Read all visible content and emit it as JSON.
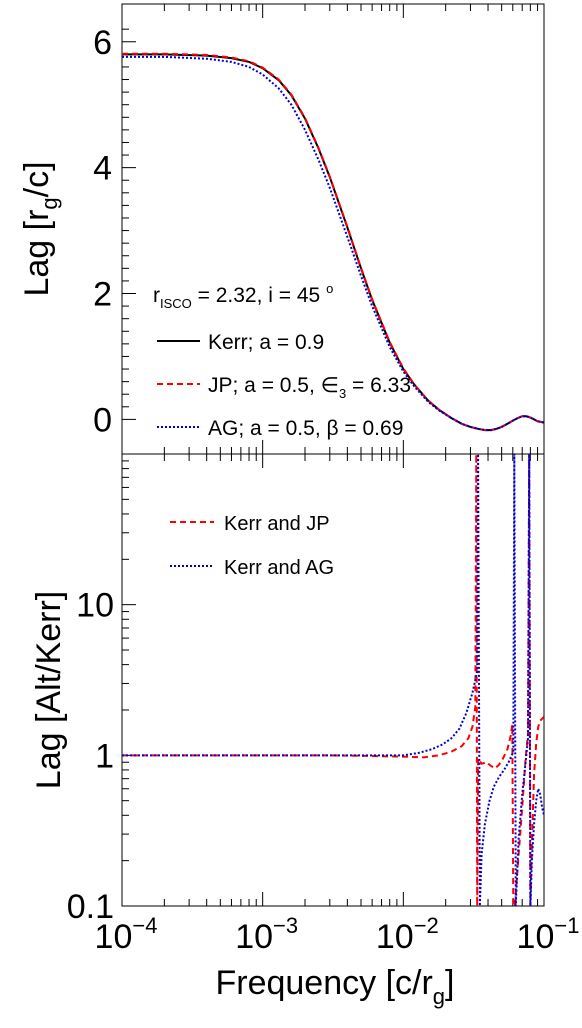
{
  "chart_data": [
    {
      "type": "line",
      "title": "",
      "ylabel": {
        "pre": "Lag [r",
        "sub": "g",
        "post": "/c]"
      },
      "xscale": "log",
      "xlim": [
        0.0001,
        0.1
      ],
      "ylim": [
        -0.55,
        6.6
      ],
      "yticks": [
        {
          "value": 0,
          "label": "0"
        },
        {
          "value": 2,
          "label": "2"
        },
        {
          "value": 4,
          "label": "4"
        },
        {
          "value": 6,
          "label": "6"
        }
      ],
      "grid": false,
      "legend_position": "bottom-left",
      "annotation": {
        "r": "r",
        "sub": "ISCO",
        "eq": " = 2.32, i = 45 ",
        "sup": "o"
      },
      "series": [
        {
          "name": "Kerr; a = 0.9",
          "legend": {
            "pre": "Kerr; a = 0.9",
            "sub": "",
            "post": ""
          },
          "color": "#000000",
          "dash": "solid",
          "x": [
            0.0001,
            0.0002,
            0.0004,
            0.0006,
            0.0008,
            0.001,
            0.0013,
            0.0016,
            0.002,
            0.0025,
            0.003,
            0.004,
            0.005,
            0.006,
            0.008,
            0.01,
            0.012,
            0.015,
            0.018,
            0.022,
            0.026,
            0.03,
            0.034,
            0.038,
            0.042,
            0.046,
            0.05,
            0.055,
            0.06,
            0.065,
            0.07,
            0.075,
            0.08,
            0.085,
            0.09,
            0.1
          ],
          "y": [
            5.8,
            5.8,
            5.78,
            5.74,
            5.68,
            5.58,
            5.39,
            5.15,
            4.78,
            4.3,
            3.85,
            3.05,
            2.4,
            1.9,
            1.22,
            0.8,
            0.55,
            0.3,
            0.15,
            0.02,
            -0.07,
            -0.12,
            -0.15,
            -0.17,
            -0.17,
            -0.15,
            -0.12,
            -0.07,
            -0.02,
            0.02,
            0.05,
            0.05,
            0.03,
            0.0,
            -0.03,
            -0.05
          ]
        },
        {
          "name": "JP; a = 0.5, ∈3 = 6.33",
          "legend": {
            "pre": "JP; a = 0.5, ∈",
            "sub": "3",
            "post": " = 6.33"
          },
          "color": "#ff0000",
          "dash": "dashed",
          "x": [
            0.0001,
            0.0002,
            0.0004,
            0.0006,
            0.0008,
            0.001,
            0.0013,
            0.0016,
            0.002,
            0.0025,
            0.003,
            0.004,
            0.005,
            0.006,
            0.008,
            0.01,
            0.012,
            0.015,
            0.018,
            0.022,
            0.026,
            0.03,
            0.034,
            0.038,
            0.042,
            0.046,
            0.05,
            0.055,
            0.06,
            0.065,
            0.07,
            0.075,
            0.08,
            0.085,
            0.09,
            0.1
          ],
          "y": [
            5.81,
            5.81,
            5.79,
            5.75,
            5.69,
            5.59,
            5.4,
            5.16,
            4.79,
            4.31,
            3.86,
            3.06,
            2.41,
            1.91,
            1.23,
            0.81,
            0.55,
            0.3,
            0.15,
            0.02,
            -0.07,
            -0.12,
            -0.15,
            -0.17,
            -0.17,
            -0.15,
            -0.12,
            -0.07,
            -0.02,
            0.02,
            0.05,
            0.05,
            0.03,
            0.0,
            -0.03,
            -0.05
          ]
        },
        {
          "name": "AG; a = 0.5, β = 0.69",
          "legend": {
            "pre": "AG; a = 0.5, β = 0.69",
            "sub": "",
            "post": ""
          },
          "color": "#0000cc",
          "dash": "dotted",
          "x": [
            0.0001,
            0.0002,
            0.0004,
            0.0006,
            0.0008,
            0.001,
            0.0013,
            0.0016,
            0.002,
            0.0025,
            0.003,
            0.004,
            0.005,
            0.006,
            0.008,
            0.01,
            0.012,
            0.015,
            0.018,
            0.022,
            0.026,
            0.03,
            0.034,
            0.038,
            0.042,
            0.046,
            0.05,
            0.055,
            0.06,
            0.065,
            0.07,
            0.075,
            0.08,
            0.085,
            0.09,
            0.1
          ],
          "y": [
            5.76,
            5.76,
            5.73,
            5.68,
            5.6,
            5.48,
            5.26,
            5.0,
            4.6,
            4.12,
            3.68,
            2.9,
            2.28,
            1.8,
            1.15,
            0.76,
            0.52,
            0.28,
            0.14,
            0.02,
            -0.07,
            -0.12,
            -0.15,
            -0.17,
            -0.17,
            -0.15,
            -0.12,
            -0.07,
            -0.02,
            0.02,
            0.05,
            0.05,
            0.03,
            0.0,
            -0.03,
            -0.05
          ]
        }
      ]
    },
    {
      "type": "line",
      "title": "",
      "ylabel": "Lag [Alt/Kerr]",
      "xlabel": {
        "pre": "Frequency [c/r",
        "sub": "g",
        "post": "]"
      },
      "xscale": "log",
      "yscale": "log",
      "xlim": [
        0.0001,
        0.1
      ],
      "ylim": [
        0.1,
        100
      ],
      "yticks": [
        {
          "value": 0.1,
          "label": "0.1"
        },
        {
          "value": 1,
          "label": "1"
        },
        {
          "value": 10,
          "label": "10"
        }
      ],
      "xticks": [
        {
          "value": 0.0001,
          "base": "10",
          "exp": "−4"
        },
        {
          "value": 0.001,
          "base": "10",
          "exp": "−3"
        },
        {
          "value": 0.01,
          "base": "10",
          "exp": "−2"
        },
        {
          "value": 0.1,
          "base": "10",
          "exp": "−1"
        }
      ],
      "grid": false,
      "legend_position": "top-left",
      "series": [
        {
          "name": "Kerr and JP",
          "color": "#ff0000",
          "dash": "dashed",
          "x": [
            0.0001,
            0.0005,
            0.001,
            0.003,
            0.006,
            0.01,
            0.014,
            0.018,
            0.022,
            0.026,
            0.029,
            0.031,
            0.0325,
            0.033,
            0.0335,
            0.034,
            0.036,
            0.039,
            0.042,
            0.045,
            0.048,
            0.051,
            0.055,
            0.058,
            0.0595,
            0.0605,
            0.062,
            0.066,
            0.07,
            0.074,
            0.077,
            0.0785,
            0.08,
            0.082,
            0.085,
            0.088,
            0.091,
            0.094,
            0.097,
            0.1
          ],
          "y": [
            1.0,
            1.0,
            1.0,
            1.0,
            0.99,
            0.98,
            0.97,
            1.0,
            1.06,
            1.15,
            1.3,
            1.55,
            2.1,
            100,
            0.1,
            0.95,
            0.88,
            0.9,
            0.85,
            0.82,
            0.87,
            0.95,
            1.1,
            1.35,
            1.6,
            0.1,
            0.1,
            0.22,
            0.45,
            0.95,
            1.4,
            100,
            0.1,
            0.25,
            0.75,
            1.2,
            1.55,
            1.7,
            1.75,
            1.8
          ]
        },
        {
          "name": "Kerr and AG",
          "color": "#0000cc",
          "dash": "dotted",
          "x": [
            0.0001,
            0.0005,
            0.001,
            0.003,
            0.006,
            0.01,
            0.013,
            0.016,
            0.019,
            0.022,
            0.025,
            0.028,
            0.031,
            0.0335,
            0.034,
            0.035,
            0.036,
            0.038,
            0.041,
            0.044,
            0.048,
            0.052,
            0.056,
            0.059,
            0.0605,
            0.0615,
            0.063,
            0.066,
            0.07,
            0.074,
            0.077,
            0.0785,
            0.08,
            0.082,
            0.085,
            0.088,
            0.091,
            0.094,
            0.097,
            0.1
          ],
          "y": [
            1.0,
            1.0,
            1.0,
            1.0,
            1.0,
            1.0,
            1.04,
            1.1,
            1.18,
            1.3,
            1.5,
            1.9,
            2.6,
            3.6,
            100,
            0.1,
            0.22,
            0.35,
            0.5,
            0.62,
            0.72,
            0.8,
            0.9,
            1.0,
            1.05,
            100,
            0.1,
            0.28,
            0.55,
            0.9,
            1.3,
            100,
            0.1,
            0.2,
            0.35,
            0.5,
            0.6,
            0.55,
            0.45,
            0.4
          ]
        }
      ]
    }
  ]
}
